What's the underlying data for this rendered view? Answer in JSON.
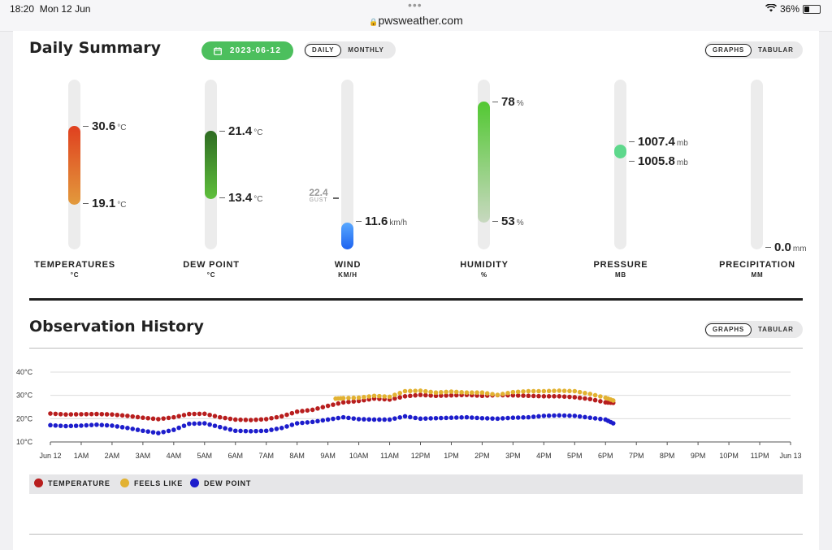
{
  "status_bar": {
    "time": "18:20",
    "date": "Mon 12 Jun",
    "url": "pwsweather.com",
    "battery": "36%",
    "battery_level": 0.36
  },
  "summary": {
    "title": "Daily Summary",
    "date": "2023-06-12",
    "period_toggle": {
      "daily": "DAILY",
      "monthly": "MONTHLY",
      "selected": "daily"
    },
    "view_toggle": {
      "graphs": "GRAPHS",
      "tabular": "TABULAR",
      "selected": "graphs"
    },
    "gauges": [
      {
        "name": "TEMPERATURES",
        "unit_label": "°C",
        "high": "30.6",
        "low": "19.1",
        "unit": "°C",
        "color_top": "#e0401f",
        "color_bottom": "#e29a3c"
      },
      {
        "name": "DEW POINT",
        "unit_label": "°C",
        "high": "21.4",
        "low": "13.4",
        "unit": "°C",
        "color_top": "#2e6b22",
        "color_bottom": "#5fbf3c"
      },
      {
        "name": "WIND",
        "unit_label": "KM/H",
        "value": "11.6",
        "unit": "km/h",
        "gust": "22.4",
        "gust_label": "GUST",
        "color_top": "#59a8ff",
        "color_bottom": "#1d63f0"
      },
      {
        "name": "HUMIDITY",
        "unit_label": "%",
        "high": "78",
        "low": "53",
        "unit": "%",
        "color_top": "#52c832",
        "color_bottom": "#c8d8c0"
      },
      {
        "name": "PRESSURE",
        "unit_label": "MB",
        "high": "1007.4",
        "low": "1005.8",
        "unit": "mb",
        "color_top": "#5ed88c",
        "color_bottom": "#5ed88c"
      },
      {
        "name": "PRECIPITATION",
        "unit_label": "MM",
        "value": "0.0",
        "unit": "mm"
      }
    ]
  },
  "history": {
    "title": "Observation History",
    "view_toggle": {
      "graphs": "GRAPHS",
      "tabular": "TABULAR",
      "selected": "graphs"
    },
    "legend": [
      {
        "label": "TEMPERATURE",
        "color": "#b81e1e"
      },
      {
        "label": "FEELS LIKE",
        "color": "#e2b232"
      },
      {
        "label": "DEW POINT",
        "color": "#1d1dcc"
      }
    ]
  },
  "chart_data": {
    "type": "scatter",
    "yunit": "°C",
    "ylim": [
      10,
      40
    ],
    "yticks": [
      "40°C",
      "30°C",
      "20°C",
      "10°C"
    ],
    "xlim": [
      0,
      24
    ],
    "xticks": [
      "Jun 12",
      "1AM",
      "2AM",
      "3AM",
      "4AM",
      "5AM",
      "6AM",
      "7AM",
      "8AM",
      "9AM",
      "10AM",
      "11AM",
      "12PM",
      "1PM",
      "2PM",
      "3PM",
      "4PM",
      "5PM",
      "6PM",
      "7PM",
      "8PM",
      "9PM",
      "10PM",
      "11PM",
      "Jun 13"
    ],
    "grid": true,
    "series": [
      {
        "name": "TEMPERATURE",
        "color": "#b81e1e",
        "x": [
          0,
          0.5,
          1,
          1.5,
          2,
          2.5,
          3,
          3.5,
          4,
          4.5,
          5,
          5.5,
          6,
          6.5,
          7,
          7.5,
          8,
          8.5,
          9,
          9.5,
          10,
          10.5,
          11,
          11.5,
          12,
          12.5,
          13,
          13.5,
          14,
          14.5,
          15,
          15.5,
          16,
          16.5,
          17,
          17.5,
          18,
          18.25
        ],
        "y": [
          22.2,
          21.8,
          21.9,
          22.0,
          21.8,
          21.2,
          20.4,
          19.8,
          20.6,
          22.0,
          22.1,
          20.6,
          19.6,
          19.4,
          19.8,
          21.0,
          23.0,
          23.8,
          25.5,
          27.0,
          27.6,
          28.6,
          28.2,
          29.6,
          30.2,
          29.8,
          30.0,
          30.2,
          29.8,
          30.1,
          30.0,
          29.8,
          29.6,
          29.6,
          29.2,
          28.4,
          27.0,
          26.8
        ]
      },
      {
        "name": "FEELS LIKE",
        "color": "#e2b232",
        "x": [
          9.25,
          9.5,
          10,
          10.5,
          11,
          11.5,
          12,
          12.5,
          13,
          13.5,
          14,
          14.5,
          15,
          15.5,
          16,
          16.5,
          17,
          17.5,
          18,
          18.25
        ],
        "y": [
          28.6,
          28.8,
          29.0,
          29.8,
          29.4,
          31.8,
          32.0,
          31.2,
          31.6,
          31.2,
          31.2,
          30.2,
          31.4,
          31.8,
          31.8,
          32.0,
          31.8,
          30.6,
          29.0,
          27.8
        ]
      },
      {
        "name": "DEW POINT",
        "color": "#1d1dcc",
        "x": [
          0,
          0.5,
          1,
          1.5,
          2,
          2.5,
          3,
          3.5,
          4,
          4.5,
          5,
          5.5,
          6,
          6.5,
          7,
          7.5,
          8,
          8.5,
          9,
          9.5,
          10,
          10.5,
          11,
          11.5,
          12,
          12.5,
          13,
          13.5,
          14,
          14.5,
          15,
          15.5,
          16,
          16.5,
          17,
          17.5,
          18,
          18.25
        ],
        "y": [
          17.2,
          16.8,
          17.0,
          17.4,
          17.0,
          16.0,
          14.8,
          13.8,
          15.2,
          17.8,
          18.0,
          16.4,
          14.8,
          14.6,
          14.8,
          16.0,
          18.0,
          18.6,
          19.6,
          20.6,
          19.8,
          19.6,
          19.6,
          21.0,
          20.0,
          20.2,
          20.4,
          20.6,
          20.2,
          20.0,
          20.4,
          20.6,
          21.2,
          21.4,
          21.2,
          20.4,
          19.6,
          18.0
        ]
      }
    ]
  }
}
